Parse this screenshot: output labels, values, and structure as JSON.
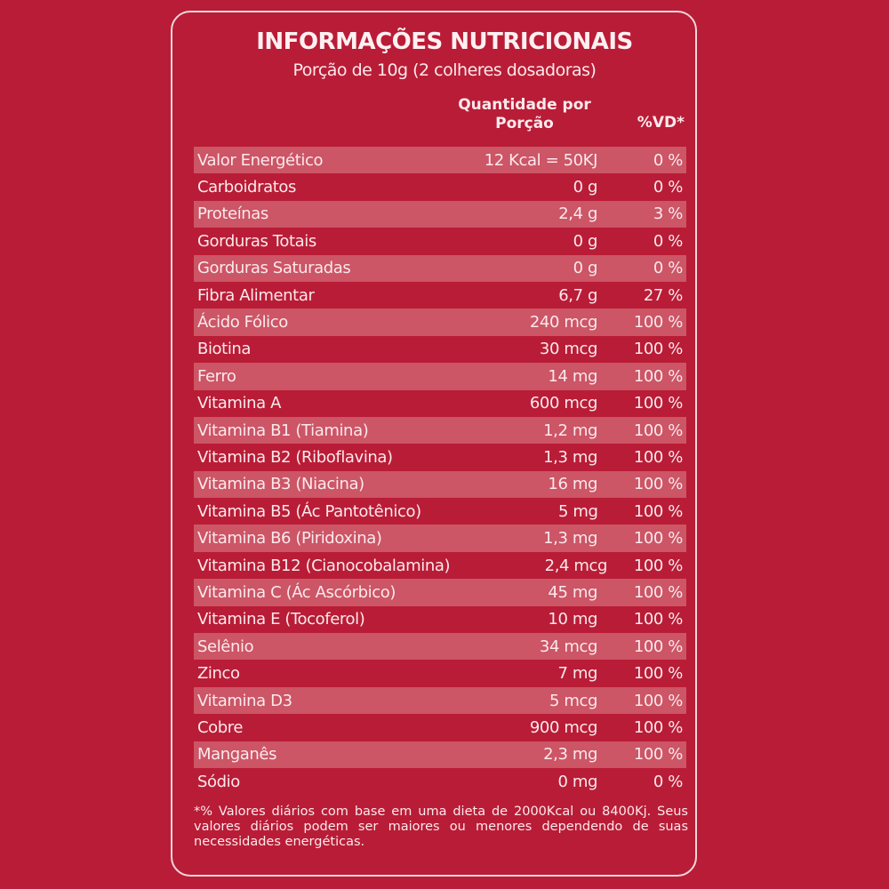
{
  "title": "INFORMAÇÕES NUTRICIONAIS",
  "subtitle": "Porção de 10g (2 colheres dosadoras)",
  "headers": {
    "quantity": "Quantidade por Porção",
    "dv": "%VD*"
  },
  "colors": {
    "background": "#b91c36",
    "stripe": "#cc5566",
    "text": "#fbe9ec"
  },
  "rows": [
    {
      "name": "Valor Energético",
      "qty": "12 Kcal = 50KJ",
      "dv": "0 %"
    },
    {
      "name": "Carboidratos",
      "qty": "0 g",
      "dv": "0 %"
    },
    {
      "name": "Proteínas",
      "qty": "2,4 g",
      "dv": "3 %"
    },
    {
      "name": "Gorduras Totais",
      "qty": "0 g",
      "dv": "0 %"
    },
    {
      "name": "Gorduras Saturadas",
      "qty": "0 g",
      "dv": "0 %"
    },
    {
      "name": "Fibra Alimentar",
      "qty": "6,7 g",
      "dv": "27 %"
    },
    {
      "name": "Ácido Fólico",
      "qty": "240 mcg",
      "dv": "100 %"
    },
    {
      "name": "Biotina",
      "qty": "30 mcg",
      "dv": "100 %"
    },
    {
      "name": "Ferro",
      "qty": "14 mg",
      "dv": "100 %"
    },
    {
      "name": "Vitamina A",
      "qty": "600 mcg",
      "dv": "100 %"
    },
    {
      "name": "Vitamina B1 (Tiamina)",
      "qty": "1,2 mg",
      "dv": "100 %"
    },
    {
      "name": "Vitamina B2 (Riboflavina)",
      "qty": "1,3 mg",
      "dv": "100 %"
    },
    {
      "name": "Vitamina B3 (Niacina)",
      "qty": "16 mg",
      "dv": "100 %"
    },
    {
      "name": "Vitamina B5 (Ác Pantotênico)",
      "qty": "5 mg",
      "dv": "100 %"
    },
    {
      "name": "Vitamina B6 (Piridoxina)",
      "qty": "1,3 mg",
      "dv": "100 %"
    },
    {
      "name": "Vitamina B12 (Cianocobalamina)",
      "qty": "2,4 mcg",
      "dv": "100 %"
    },
    {
      "name": "Vitamina C (Ác Ascórbico)",
      "qty": "45 mg",
      "dv": "100 %"
    },
    {
      "name": "Vitamina E (Tocoferol)",
      "qty": "10 mg",
      "dv": "100 %"
    },
    {
      "name": "Selênio",
      "qty": "34 mcg",
      "dv": "100 %"
    },
    {
      "name": "Zinco",
      "qty": "7 mg",
      "dv": "100 %"
    },
    {
      "name": "Vitamina D3",
      "qty": "5 mcg",
      "dv": "100 %"
    },
    {
      "name": "Cobre",
      "qty": "900 mcg",
      "dv": "100 %"
    },
    {
      "name": "Manganês",
      "qty": "2,3 mg",
      "dv": "100 %"
    },
    {
      "name": "Sódio",
      "qty": "0 mg",
      "dv": "0 %"
    }
  ],
  "footnote": "*% Valores diários com base em uma dieta de 2000Kcal ou 8400Kj. Seus valores diários podem ser maiores ou menores dependendo de suas necessidades energéticas."
}
